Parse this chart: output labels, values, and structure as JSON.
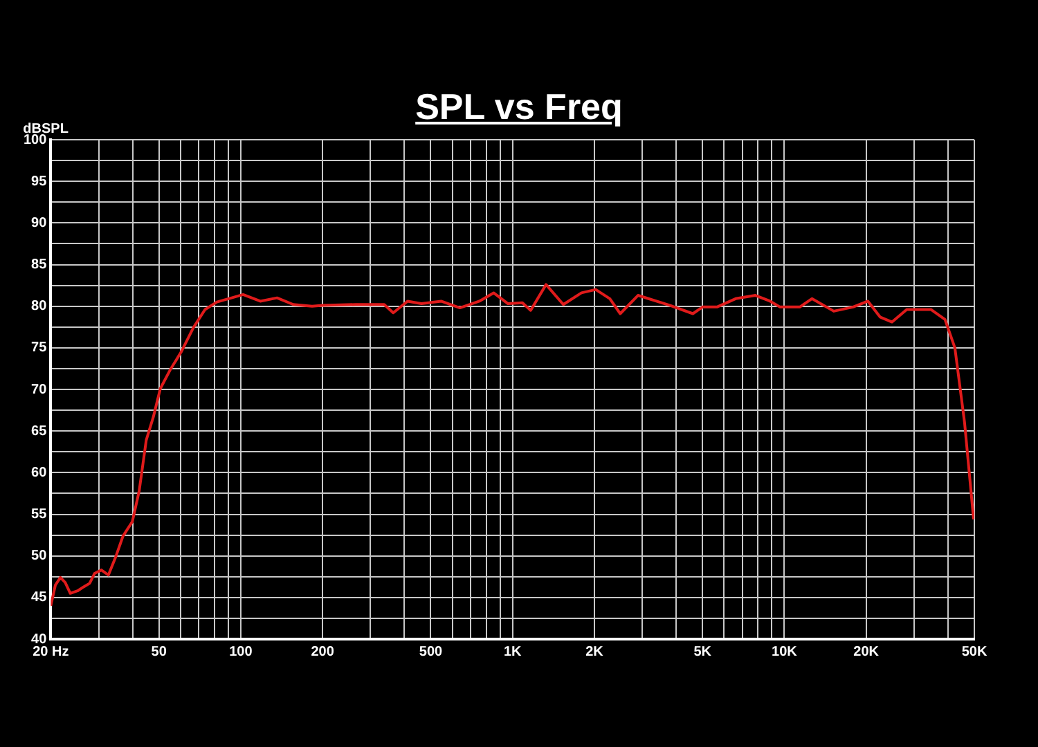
{
  "chart_data": {
    "type": "line",
    "title": "SPL vs Freq",
    "ylabel": "dBSPL",
    "log": "x",
    "grid": true,
    "legend": false,
    "marker": "none",
    "line_style": "solid",
    "xlim": [
      20,
      50000
    ],
    "xticks": [
      {
        "value": 20,
        "label": "20 Hz"
      },
      {
        "value": 30,
        "label": null
      },
      {
        "value": 40,
        "label": null
      },
      50,
      {
        "value": 60,
        "label": null
      },
      {
        "value": 70,
        "label": null
      },
      {
        "value": 80,
        "label": null
      },
      {
        "value": 90,
        "label": null
      },
      100,
      200,
      {
        "value": 300,
        "label": null
      },
      {
        "value": 400,
        "label": null
      },
      500,
      {
        "value": 600,
        "label": null
      },
      {
        "value": 700,
        "label": null
      },
      {
        "value": 800,
        "label": null
      },
      {
        "value": 900,
        "label": null
      },
      {
        "value": 1000,
        "label": "1K"
      },
      {
        "value": 2000,
        "label": "2K"
      },
      {
        "value": 3000,
        "label": null
      },
      {
        "value": 4000,
        "label": null
      },
      {
        "value": 5000,
        "label": "5K"
      },
      {
        "value": 6000,
        "label": null
      },
      {
        "value": 7000,
        "label": null
      },
      {
        "value": 8000,
        "label": null
      },
      {
        "value": 9000,
        "label": null
      },
      {
        "value": 10000,
        "label": "10K"
      },
      {
        "value": 20000,
        "label": "20K"
      },
      {
        "value": 30000,
        "label": null
      },
      {
        "value": 40000,
        "label": null
      },
      {
        "value": 50000,
        "label": "50K"
      }
    ],
    "ylim": [
      40,
      100
    ],
    "yticks": [
      40,
      {
        "value": 42.5,
        "label": null
      },
      45,
      {
        "value": 47.5,
        "label": null
      },
      50,
      {
        "value": 52.5,
        "label": null
      },
      55,
      {
        "value": 57.5,
        "label": null
      },
      60,
      {
        "value": 62.5,
        "label": null
      },
      65,
      {
        "value": 67.5,
        "label": null
      },
      70,
      {
        "value": 72.5,
        "label": null
      },
      75,
      {
        "value": 77.5,
        "label": null
      },
      80,
      {
        "value": 82.5,
        "label": null
      },
      85,
      {
        "value": 87.5,
        "label": null
      },
      90,
      {
        "value": 92.5,
        "label": null
      },
      95,
      {
        "value": 97.5,
        "label": null
      },
      100
    ],
    "series": [
      {
        "color": "#e01b1b",
        "x": [
          20,
          20.8,
          21.7,
          22.6,
          23.6,
          25.1,
          26.5,
          27.8,
          29,
          30.7,
          32.6,
          34.6,
          36.9,
          39.9,
          42.3,
          44.9,
          47.7,
          50.6,
          54.9,
          60.6,
          66.9,
          73.9,
          81.7,
          92.6,
          102,
          118,
          136,
          156,
          183,
          200,
          265,
          337,
          364,
          411,
          462,
          546,
          640,
          755,
          852,
          962,
          1087,
          1166,
          1328,
          1537,
          1793,
          2023,
          2280,
          2490,
          2894,
          3785,
          4607,
          5000,
          5650,
          6620,
          7824,
          8866,
          9638,
          11400,
          12630,
          15200,
          17900,
          20300,
          22500,
          24900,
          28200,
          34600,
          39000,
          42400,
          46000,
          49700
        ],
        "values": [
          44.0,
          46.5,
          47.4,
          46.8,
          45.5,
          45.8,
          46.3,
          46.7,
          47.9,
          48.3,
          47.7,
          49.8,
          52.4,
          54.1,
          57.8,
          63.9,
          66.7,
          70.1,
          72.3,
          74.6,
          77.4,
          79.6,
          80.5,
          81.0,
          81.4,
          80.6,
          81.0,
          80.2,
          80.0,
          80.1,
          80.2,
          80.2,
          79.2,
          80.6,
          80.3,
          80.6,
          79.8,
          80.6,
          81.6,
          80.3,
          80.4,
          79.5,
          82.6,
          80.2,
          81.6,
          82.0,
          80.9,
          79.1,
          81.3,
          80.1,
          79.1,
          79.9,
          79.9,
          80.9,
          81.3,
          80.6,
          79.9,
          79.9,
          80.9,
          79.4,
          79.9,
          80.6,
          78.7,
          78.1,
          79.6,
          79.6,
          78.4,
          75.0,
          66.1,
          54.4
        ]
      }
    ]
  }
}
